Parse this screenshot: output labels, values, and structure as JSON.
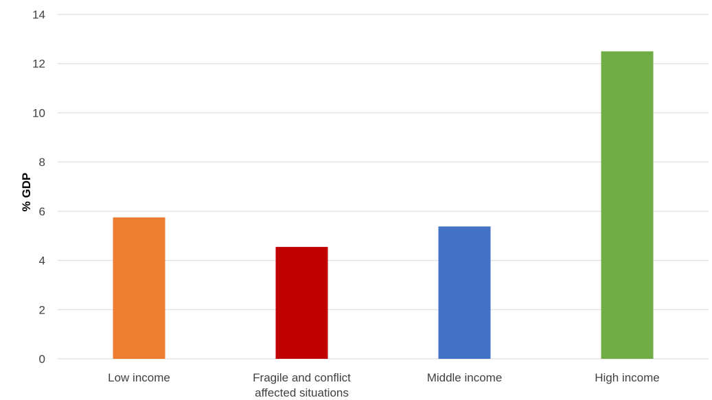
{
  "chart_data": {
    "type": "bar",
    "title": "",
    "xlabel": "",
    "ylabel": "% GDP",
    "ylim": [
      0,
      14
    ],
    "yticks": [
      "0",
      "2",
      "4",
      "6",
      "8",
      "10",
      "12",
      "14"
    ],
    "grid": true,
    "legend": "none",
    "categories": [
      [
        "Low income"
      ],
      [
        "Fragile and conflict",
        "affected situations"
      ],
      [
        "Middle income"
      ],
      [
        "High income"
      ]
    ],
    "values": [
      5.75,
      4.55,
      5.38,
      12.5
    ],
    "colors": [
      "#ED7D31",
      "#C00000",
      "#4472C4",
      "#70AD47"
    ]
  }
}
